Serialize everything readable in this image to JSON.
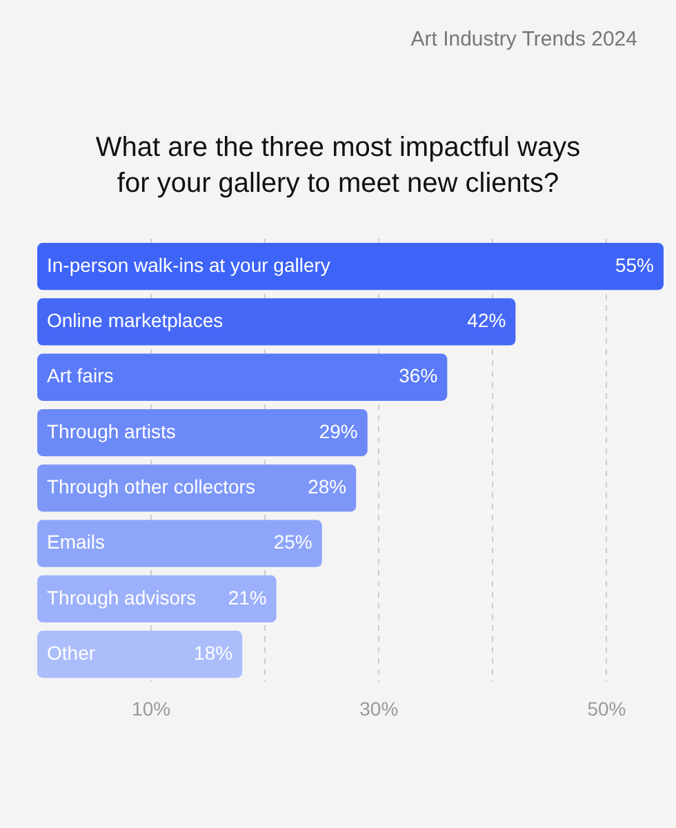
{
  "chart_data": {
    "type": "bar",
    "orientation": "horizontal",
    "title": "What are the three most impactful ways for your gallery to meet new clients?",
    "annotations": [
      "Art Industry Trends 2024"
    ],
    "categories": [
      "In-person walk-ins at your gallery",
      "Online marketplaces",
      "Art fairs",
      "Through artists",
      "Through other collectors",
      "Emails",
      "Through advisors",
      "Other"
    ],
    "values": [
      55,
      42,
      36,
      29,
      28,
      25,
      21,
      18
    ],
    "value_labels": [
      "55%",
      "42%",
      "36%",
      "29%",
      "28%",
      "25%",
      "21%",
      "18%"
    ],
    "colors": [
      "#3d63f7",
      "#4668f7",
      "#5a7af7",
      "#6c89f8",
      "#7d97f9",
      "#8ea5fa",
      "#9cb0fb",
      "#abbdfb"
    ],
    "xlim": [
      0,
      55
    ],
    "xticks": [
      {
        "value": 10,
        "label": "10%"
      },
      {
        "value": 20,
        "label": null
      },
      {
        "value": 30,
        "label": "30%"
      },
      {
        "value": 40,
        "label": null
      },
      {
        "value": 50,
        "label": "50%"
      }
    ],
    "grid": "x",
    "legend": false
  }
}
